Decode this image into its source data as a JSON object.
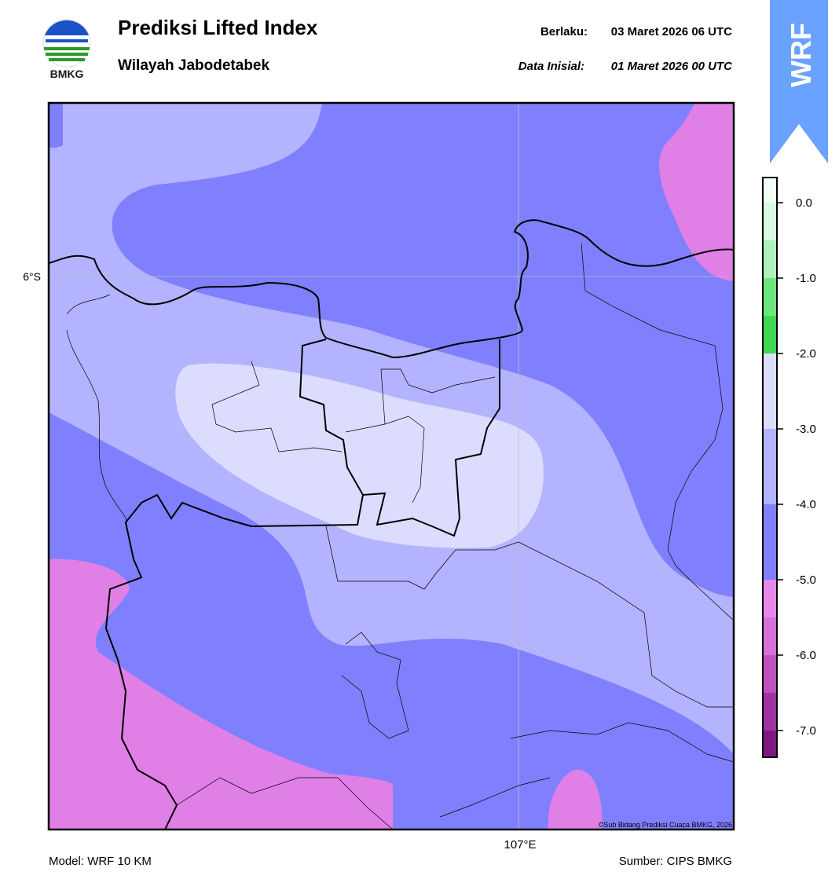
{
  "header": {
    "logo_text": "BMKG",
    "title": "Prediksi Lifted Index",
    "subtitle": "Wilayah Jabodetabek",
    "valid_label": "Berlaku:",
    "valid_time": "03 Maret 2026 06 UTC",
    "init_label": "Data Inisial:",
    "init_time": "01 Maret 2026 00 UTC",
    "badge": "WRF"
  },
  "map": {
    "lat_label": "6°S",
    "lon_label": "107°E",
    "copyright": "©Sub Bidang Prediksi Cuaca BMKG, 2026"
  },
  "colorbar": {
    "labels": [
      "0.0",
      "-1.0",
      "-2.0",
      "-3.0",
      "-4.0",
      "-5.0",
      "-6.0",
      "-7.0"
    ]
  },
  "footer": {
    "model": "Model: WRF 10 KM",
    "source": "Sumber: CIPS BMKG"
  }
}
